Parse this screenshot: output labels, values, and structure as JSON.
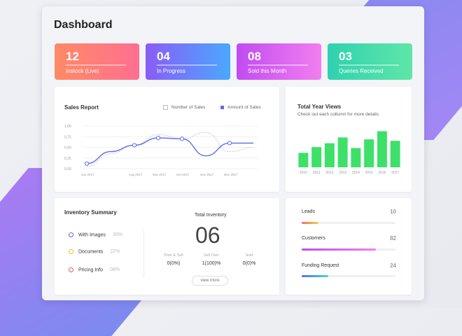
{
  "page": {
    "title": "Dashboard"
  },
  "stats": [
    {
      "value": "12",
      "label": "Instock (Live)",
      "gradient": [
        "#ff8a65",
        "#ff6f91"
      ]
    },
    {
      "value": "04",
      "label": "In Progress",
      "gradient": [
        "#8a5cf6",
        "#4aa8ff"
      ]
    },
    {
      "value": "08",
      "label": "Sold this Month",
      "gradient": [
        "#c04cf0",
        "#f27ef0"
      ]
    },
    {
      "value": "03",
      "label": "Queries Received",
      "gradient": [
        "#2fd1b0",
        "#5fe6a8"
      ]
    }
  ],
  "sales_report": {
    "title": "Sales Report",
    "legend": [
      {
        "label": "Number of Sales",
        "color": "#b8bcc8"
      },
      {
        "label": "Amount of Sales",
        "color": "#5b6ee8"
      }
    ],
    "chart_data": {
      "type": "line",
      "x": [
        "Jun 2017",
        "Jul 2017",
        "Aug 2017",
        "Sep 2017",
        "Oct 2017",
        "Nov 2017",
        "Dec 2017",
        "Jan 2018"
      ],
      "xticks": [
        "Jun 2017",
        "Aug 2017",
        "Sep 2017",
        "Oct 2017",
        "Nov 2017",
        "Dec 2017"
      ],
      "yticks": [
        "1.00",
        "0.75",
        "0.50",
        "0.25",
        "0.00"
      ],
      "ylim": [
        0,
        1
      ],
      "series": [
        {
          "name": "Number of Sales",
          "values": [
            0.05,
            0.35,
            0.55,
            0.8,
            0.7,
            0.85,
            0.4,
            0.5
          ]
        },
        {
          "name": "Amount of Sales",
          "values": [
            0.12,
            0.4,
            0.55,
            0.72,
            0.7,
            0.3,
            0.6,
            0.6
          ]
        }
      ]
    }
  },
  "year_views": {
    "title": "Total Year Views",
    "subtitle": "Check out each collumn for more details",
    "chart_data": {
      "type": "bar",
      "categories": [
        "2010",
        "2011",
        "2012",
        "2013",
        "2014",
        "2015",
        "2016",
        "2017"
      ],
      "values": [
        30,
        42,
        50,
        62,
        40,
        58,
        75,
        55
      ],
      "ylim": [
        0,
        80
      ],
      "color": "#3ee06a"
    }
  },
  "inventory": {
    "title": "Inventory Summary",
    "items": [
      {
        "label": "With Images",
        "pct": "30%",
        "color": "#5b6ee8"
      },
      {
        "label": "Documents",
        "pct": "22%",
        "color": "#f0c419"
      },
      {
        "label": "Pricing Info",
        "pct": "08%",
        "color": "#f05a5a"
      }
    ],
    "total_label": "Total Inventory",
    "total_value": "06",
    "breakdown": [
      {
        "label": "Park & Sell",
        "value": "0(0%)"
      },
      {
        "label": "Sell Own",
        "value": "1(100)%"
      },
      {
        "label": "Sold",
        "value": "0(0)%"
      }
    ],
    "view_more": "view more"
  },
  "leads": [
    {
      "label": "Leads",
      "value": "10",
      "fill": 0.18,
      "gradient": [
        "#f56a6a",
        "#f5d04a"
      ]
    },
    {
      "label": "Customers",
      "value": "82",
      "fill": 0.79,
      "gradient": [
        "#c04cf0",
        "#f27ef0"
      ]
    },
    {
      "label": "Funding Request",
      "value": "24",
      "fill": 0.28,
      "gradient": [
        "#5b6ee8",
        "#3ee0b8"
      ]
    }
  ]
}
